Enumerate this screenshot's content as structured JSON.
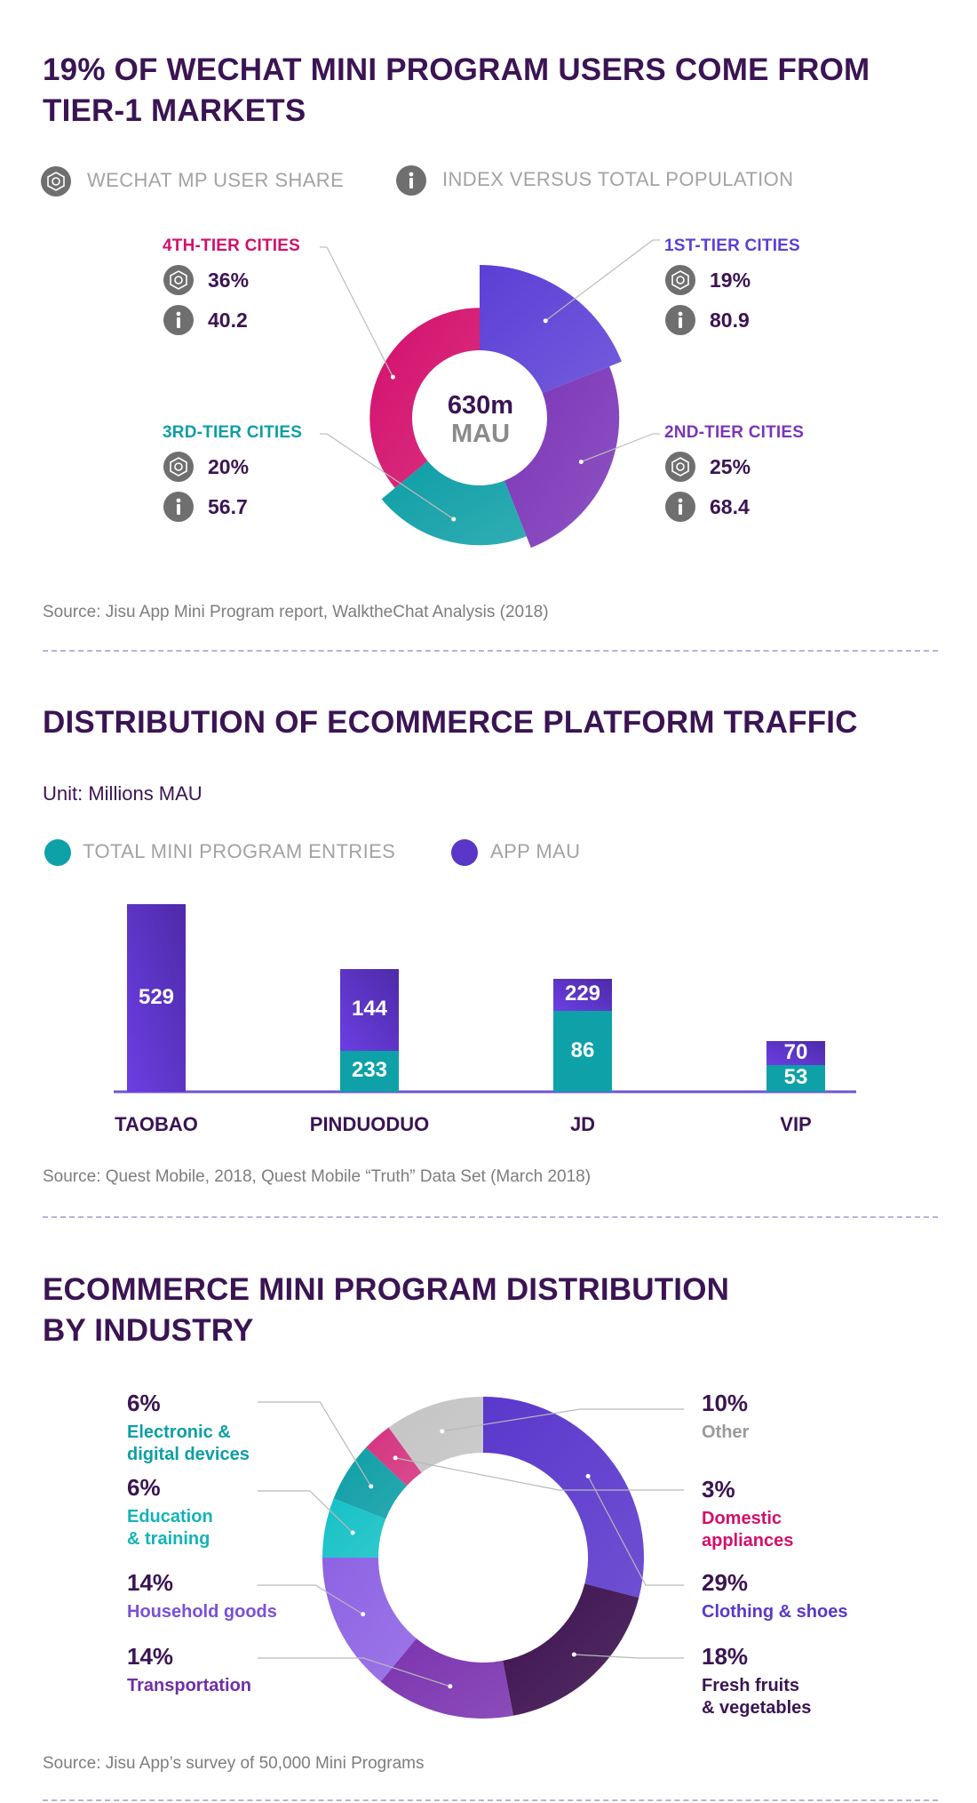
{
  "section1": {
    "title_line1": "19% OF WECHAT MINI PROGRAM USERS COME FROM",
    "title_line2": "TIER-1 MARKETS",
    "legend_share": "WECHAT MP USER SHARE",
    "legend_index": "INDEX VERSUS TOTAL POPULATION",
    "center_line1": "630m",
    "center_line2": "MAU",
    "source": "Source: Jisu App Mini Program report, WalktheChat Analysis (2018)"
  },
  "section2": {
    "title": "DISTRIBUTION OF ECOMMERCE PLATFORM TRAFFIC",
    "unit": "Unit: Millions MAU",
    "legend_entries": "TOTAL MINI PROGRAM ENTRIES",
    "legend_app": "APP MAU",
    "source": "Source: Quest Mobile, 2018, Quest Mobile “Truth” Data Set (March 2018)"
  },
  "section3": {
    "title_line1": "ECOMMERCE MINI PROGRAM DISTRIBUTION",
    "title_line2": "BY INDUSTRY",
    "source": "Source: Jisu App’s survey of 50,000 Mini Programs"
  },
  "chart_data": [
    {
      "type": "pie",
      "variant": "polar-area donut",
      "center_label": "630m MAU",
      "series": [
        {
          "name": "1ST-TIER CITIES",
          "share": 19,
          "share_label": "19%",
          "index": 80.9,
          "index_label": "80.9",
          "color": "#5b3fd6"
        },
        {
          "name": "2ND-TIER CITIES",
          "share": 25,
          "share_label": "25%",
          "index": 68.4,
          "index_label": "68.4",
          "color": "#7b35b8"
        },
        {
          "name": "3RD-TIER CITIES",
          "share": 20,
          "share_label": "20%",
          "index": 56.7,
          "index_label": "56.7",
          "color": "#0d9ea6"
        },
        {
          "name": "4TH-TIER CITIES",
          "share": 36,
          "share_label": "36%",
          "index": 40.2,
          "index_label": "40.2",
          "color": "#d30f6c"
        }
      ]
    },
    {
      "type": "bar",
      "stacked": true,
      "categories": [
        "TAOBAO",
        "PINDUODUO",
        "JD",
        "VIP"
      ],
      "series": [
        {
          "name": "TOTAL MINI PROGRAM ENTRIES",
          "values": [
            null,
            233,
            86,
            53
          ],
          "labels": [
            "",
            "233",
            "86",
            "53"
          ],
          "color": "#0ea1a8"
        },
        {
          "name": "APP MAU",
          "values": [
            529,
            144,
            229,
            70
          ],
          "labels": [
            "529",
            "144",
            "229",
            "70"
          ],
          "color": "#5a36c9"
        }
      ]
    },
    {
      "type": "pie",
      "variant": "donut",
      "slices": [
        {
          "pct": 29,
          "pct_label": "29%",
          "name": "Clothing & shoes",
          "name_lines": [
            "Clothing & shoes"
          ],
          "color": "#5a38cc",
          "label_color": "#5a38cc",
          "side": "right"
        },
        {
          "pct": 18,
          "pct_label": "18%",
          "name": "Fresh fruits & vegetables",
          "name_lines": [
            "Fresh fruits",
            "& vegetables"
          ],
          "color": "#3d1250",
          "label_color": "#3b1453",
          "side": "right"
        },
        {
          "pct": 14,
          "pct_label": "14%",
          "name": "Transportation",
          "name_lines": [
            "Transportation"
          ],
          "color": "#7b34b0",
          "label_color": "#6f2ea8",
          "side": "left"
        },
        {
          "pct": 14,
          "pct_label": "14%",
          "name": "Household goods",
          "name_lines": [
            "Household goods"
          ],
          "color": "#8e63e4",
          "label_color": "#7a4fd8",
          "side": "left"
        },
        {
          "pct": 6,
          "pct_label": "6%",
          "name": "Education & training",
          "name_lines": [
            "Education",
            "& training"
          ],
          "color": "#14c1c6",
          "label_color": "#14b3b8",
          "side": "left"
        },
        {
          "pct": 6,
          "pct_label": "6%",
          "name": "Electronic & digital devices",
          "name_lines": [
            "Electronic &",
            "digital devices"
          ],
          "color": "#0d9ea6",
          "label_color": "#0d9ea6",
          "side": "left"
        },
        {
          "pct": 3,
          "pct_label": "3%",
          "name": "Domestic appliances",
          "name_lines": [
            "Domestic",
            "appliances"
          ],
          "color": "#d4337f",
          "label_color": "#d30f6c",
          "side": "right"
        },
        {
          "pct": 10,
          "pct_label": "10%",
          "name": "Other",
          "name_lines": [
            "Other"
          ],
          "color": "#c4c4c4",
          "label_color": "#9a9a9a",
          "side": "right"
        }
      ]
    }
  ]
}
